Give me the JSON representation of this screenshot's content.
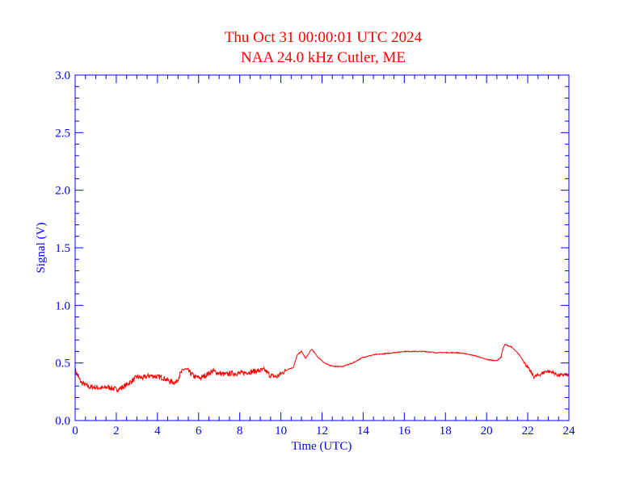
{
  "chart_data": {
    "type": "line",
    "title": "Thu Oct 31 00:00:01 UTC 2024",
    "subtitle": "NAA 24.0 kHz Cutler, ME",
    "xlabel": "Time (UTC)",
    "ylabel": "Signal (V)",
    "xlim": [
      0,
      24
    ],
    "ylim": [
      0,
      3.0
    ],
    "xticks": [
      "0",
      "2",
      "4",
      "6",
      "8",
      "10",
      "12",
      "14",
      "16",
      "18",
      "20",
      "22",
      "24"
    ],
    "yticks": [
      "0.0",
      "0.5",
      "1.0",
      "1.5",
      "2.0",
      "2.5",
      "3.0"
    ],
    "grid": false,
    "colors": {
      "axes": "#0000ff",
      "series": "#ff0000",
      "title": "#ff0000"
    },
    "series": [
      {
        "x": [
          0,
          0.1,
          0.2,
          0.3,
          0.5,
          0.7,
          1.0,
          1.3,
          1.6,
          2.0,
          2.2,
          2.5,
          2.8,
          3.0,
          3.3,
          3.6,
          4.0,
          4.3,
          4.6,
          4.9,
          5.1,
          5.3,
          5.5,
          5.8,
          6.1,
          6.4,
          6.7,
          7.0,
          7.3,
          7.6,
          8.0,
          8.4,
          8.8,
          9.2,
          9.5,
          9.8,
          10.1,
          10.4,
          10.6,
          10.8,
          11.0,
          11.2,
          11.5,
          11.8,
          12.2,
          12.6,
          13.0,
          13.5,
          14.0,
          14.5,
          15.0,
          15.5,
          16.0,
          16.5,
          17.0,
          17.5,
          18.0,
          18.5,
          19.0,
          19.5,
          20.0,
          20.5,
          20.7,
          20.8,
          20.9,
          21.2,
          21.6,
          22.0,
          22.3,
          22.6,
          22.9,
          23.2,
          23.5,
          23.8,
          24.0
        ],
        "values": [
          0.44,
          0.4,
          0.36,
          0.33,
          0.31,
          0.29,
          0.29,
          0.28,
          0.29,
          0.27,
          0.28,
          0.31,
          0.35,
          0.38,
          0.37,
          0.39,
          0.38,
          0.37,
          0.34,
          0.33,
          0.4,
          0.45,
          0.43,
          0.38,
          0.37,
          0.4,
          0.43,
          0.41,
          0.4,
          0.41,
          0.41,
          0.42,
          0.43,
          0.44,
          0.39,
          0.38,
          0.42,
          0.45,
          0.46,
          0.57,
          0.6,
          0.54,
          0.62,
          0.55,
          0.49,
          0.47,
          0.47,
          0.5,
          0.55,
          0.57,
          0.58,
          0.59,
          0.6,
          0.6,
          0.6,
          0.59,
          0.59,
          0.59,
          0.58,
          0.56,
          0.53,
          0.52,
          0.55,
          0.63,
          0.66,
          0.64,
          0.57,
          0.46,
          0.38,
          0.4,
          0.43,
          0.42,
          0.39,
          0.4,
          0.39
        ]
      }
    ]
  }
}
